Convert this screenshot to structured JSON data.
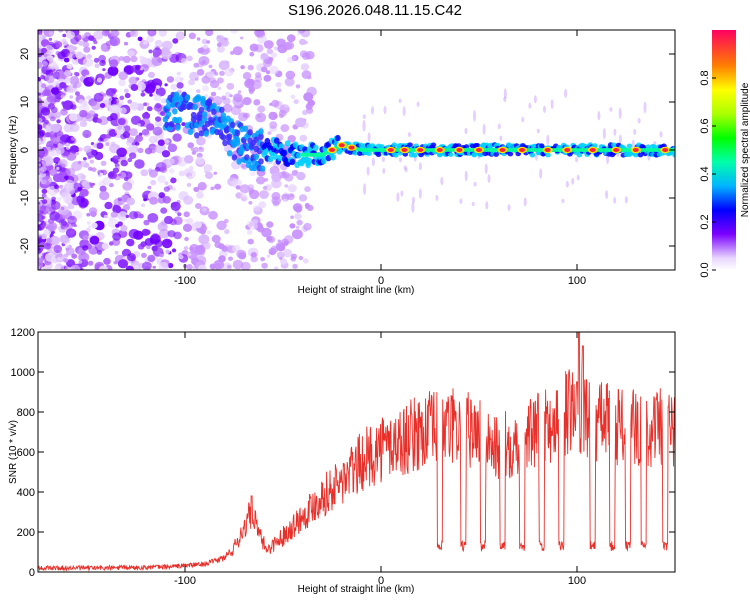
{
  "title": "S196.2026.048.11.15.C42",
  "spectrogram": {
    "type": "heatmap",
    "xlabel": "Height of straight line (km)",
    "ylabel": "Frequency (Hz)",
    "xlim": [
      -175,
      150
    ],
    "ylim": [
      -25,
      25
    ],
    "xticks": [
      -100,
      0,
      100
    ],
    "xtick_labels": [
      "-100",
      "0",
      "100"
    ],
    "yticks": [
      20,
      10,
      0,
      -10,
      -20
    ],
    "ytick_labels": [
      "20",
      "10",
      "0",
      "-10",
      "-20"
    ],
    "colorbar": {
      "label": "Normalized spectral amplitude",
      "range": [
        0,
        1
      ],
      "ticks": [
        0.0,
        0.2,
        0.4,
        0.6,
        0.8
      ],
      "tick_labels": [
        "0.0",
        "0.2",
        "0.4",
        "0.6",
        "0.8"
      ]
    },
    "ridge_points": [
      [
        -105,
        8
      ],
      [
        -95,
        7
      ],
      [
        -85,
        7
      ],
      [
        -75,
        2
      ],
      [
        -65,
        0
      ],
      [
        -55,
        0
      ],
      [
        -45,
        -1
      ],
      [
        -30,
        -1
      ],
      [
        -20,
        1
      ],
      [
        -10,
        0
      ],
      [
        0,
        0
      ],
      [
        10,
        0
      ],
      [
        30,
        0
      ],
      [
        50,
        0
      ],
      [
        70,
        0
      ],
      [
        90,
        0
      ],
      [
        110,
        0
      ],
      [
        130,
        0
      ],
      [
        150,
        0
      ]
    ],
    "hotspot_x": [
      -25,
      -20,
      -15,
      5,
      12,
      20,
      30,
      40,
      50,
      62,
      72,
      85,
      95,
      108,
      120,
      130,
      145
    ]
  },
  "snr": {
    "type": "line",
    "xlabel": "Height of straight line (km)",
    "ylabel": "SNR (10 * v/v)",
    "xlim": [
      -175,
      150
    ],
    "ylim": [
      0,
      1200
    ],
    "xticks": [
      -100,
      0,
      100
    ],
    "xtick_labels": [
      "-100",
      "0",
      "100"
    ],
    "yticks": [
      0,
      200,
      400,
      600,
      800,
      1000,
      1200
    ],
    "ytick_labels": [
      "0",
      "200",
      "400",
      "600",
      "800",
      "1000",
      "1200"
    ],
    "color": "#e8302a",
    "base_points": [
      [
        -175,
        20
      ],
      [
        -140,
        20
      ],
      [
        -110,
        25
      ],
      [
        -90,
        40
      ],
      [
        -80,
        70
      ],
      [
        -75,
        120
      ],
      [
        -70,
        220
      ],
      [
        -66,
        300
      ],
      [
        -62,
        180
      ],
      [
        -58,
        110
      ],
      [
        -50,
        180
      ],
      [
        -40,
        280
      ],
      [
        -30,
        380
      ],
      [
        -20,
        450
      ],
      [
        -10,
        550
      ],
      [
        0,
        620
      ],
      [
        10,
        650
      ],
      [
        20,
        700
      ],
      [
        30,
        720
      ],
      [
        40,
        720
      ],
      [
        50,
        700
      ],
      [
        60,
        620
      ],
      [
        70,
        660
      ],
      [
        80,
        700
      ],
      [
        90,
        760
      ],
      [
        100,
        830
      ],
      [
        110,
        760
      ],
      [
        120,
        740
      ],
      [
        130,
        720
      ],
      [
        140,
        720
      ],
      [
        150,
        720
      ]
    ],
    "dip_centers": [
      30,
      42,
      52,
      62,
      72,
      82,
      92,
      108,
      118,
      126,
      134,
      145
    ],
    "dip_value": 130,
    "spikes": [
      [
        -66,
        380
      ],
      [
        101,
        1200
      ],
      [
        103,
        1130
      ],
      [
        100,
        950
      ]
    ]
  }
}
